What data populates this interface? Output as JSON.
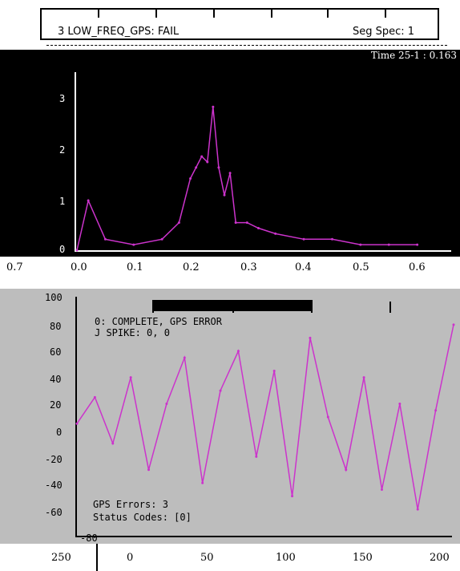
{
  "header": {
    "status": "3 LOW_FREQ_GPS: FAIL",
    "seg_spec": "Seg Spec: 1",
    "time_label": "Time 25-1 : 0.163"
  },
  "top_chart": {
    "y_ticks": [
      "3",
      "2",
      "1",
      "0"
    ],
    "x_ticks": [
      "0.7",
      "0.0",
      "0.1",
      "0.2",
      "0.3",
      "0.4",
      "0.5",
      "0.6"
    ]
  },
  "bottom_chart": {
    "y_ticks": [
      "100",
      "80",
      "60",
      "40",
      "20",
      "0",
      "-20",
      "-40",
      "-60",
      "-80"
    ],
    "x_ticks": [
      "250",
      "0",
      "50",
      "100",
      "150",
      "200"
    ],
    "legend_line1": "0: COMPLETE, GPS ERROR",
    "legend_line2": "J SPIKE: 0, 0",
    "gps_errors": "GPS Errors: 3",
    "status_codes": "Status Codes: [0]"
  },
  "colors": {
    "signal": "#cc33cc",
    "trace": "#33aa33",
    "background_dark": "#000000",
    "background_gray": "#bdbdbd"
  },
  "chart_data": [
    {
      "type": "line",
      "x": [
        0.0,
        0.02,
        0.05,
        0.1,
        0.15,
        0.18,
        0.2,
        0.21,
        0.22,
        0.23,
        0.24,
        0.25,
        0.26,
        0.27,
        0.28,
        0.3,
        0.32,
        0.35,
        0.4,
        0.45,
        0.5,
        0.55,
        0.6
      ],
      "y": [
        0.0,
        0.9,
        0.2,
        0.1,
        0.2,
        0.5,
        1.3,
        1.5,
        1.7,
        1.6,
        2.6,
        1.5,
        1.0,
        1.4,
        0.5,
        0.5,
        0.4,
        0.3,
        0.2,
        0.2,
        0.1,
        0.1,
        0.1
      ],
      "xlim": [
        0,
        0.65
      ],
      "ylim": [
        0,
        3.2
      ]
    },
    {
      "type": "line",
      "x": [
        0,
        10,
        20,
        30,
        40,
        50,
        60,
        70,
        80,
        90,
        100,
        110,
        120,
        130,
        140,
        150,
        160,
        170,
        180,
        190,
        200,
        210
      ],
      "y": [
        5,
        25,
        -10,
        40,
        -30,
        20,
        55,
        -40,
        30,
        60,
        -20,
        45,
        -50,
        70,
        10,
        -30,
        40,
        -45,
        20,
        -60,
        15,
        80
      ],
      "xlim": [
        0,
        210
      ],
      "ylim": [
        -80,
        100
      ]
    }
  ]
}
